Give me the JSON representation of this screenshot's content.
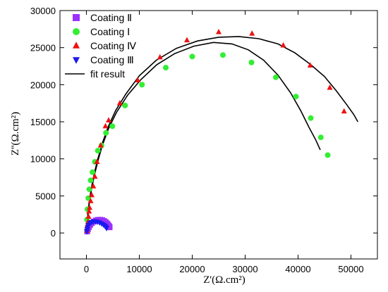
{
  "chart_data": {
    "type": "scatter",
    "xlabel": "Z'(Ω.cm²)",
    "ylabel": "Z''(Ω.cm²)",
    "xlim": [
      -5000,
      55000
    ],
    "ylim": [
      -3500,
      30000
    ],
    "xticks": [
      0,
      10000,
      20000,
      30000,
      40000,
      50000
    ],
    "yticks": [
      0,
      5000,
      10000,
      15000,
      20000,
      25000,
      30000
    ],
    "xtick_labels": [
      "0",
      "10000",
      "20000",
      "30000",
      "40000",
      "50000"
    ],
    "ytick_labels": [
      "0",
      "5000",
      "10000",
      "15000",
      "20000",
      "25000",
      "30000"
    ],
    "grid": false,
    "legend_position": "top-left",
    "legend_entries": [
      "Coating Ⅱ",
      "Coating Ⅰ",
      "Coating Ⅳ",
      "Coating Ⅲ",
      "fit result"
    ],
    "series": [
      {
        "name": "Coating Ⅱ",
        "marker": "square",
        "color": "#9b30ff",
        "x": [
          150,
          300,
          500,
          750,
          1050,
          1400,
          1800,
          2200,
          2600,
          3000,
          3350,
          3650,
          3900,
          4100,
          4250,
          4350,
          4400
        ],
        "y": [
          200,
          500,
          800,
          1100,
          1350,
          1550,
          1700,
          1780,
          1790,
          1740,
          1620,
          1480,
          1300,
          1120,
          960,
          840,
          760
        ]
      },
      {
        "name": "Coating Ⅰ",
        "marker": "circle",
        "color": "#33ee33",
        "x": [
          100,
          200,
          350,
          550,
          800,
          1150,
          1600,
          2150,
          2850,
          3700,
          4900,
          7300,
          10500,
          15000,
          20000,
          25800,
          31200,
          35800,
          39600,
          42400,
          44300,
          45600
        ],
        "y": [
          1800,
          3200,
          4700,
          5900,
          7100,
          8200,
          9600,
          11100,
          11800,
          13500,
          14400,
          17200,
          20000,
          22300,
          23800,
          24000,
          23000,
          21000,
          18400,
          15500,
          12900,
          10500
        ]
      },
      {
        "name": "Coating Ⅳ",
        "marker": "triangle-up",
        "color": "#ee1111",
        "x": [
          100,
          150,
          200,
          300,
          400,
          500,
          600,
          800,
          1000,
          1300,
          1600,
          2000,
          2700,
          3600,
          4200,
          6300,
          9700,
          13900,
          19000,
          25000,
          31300,
          37200,
          42300,
          46000,
          48700
        ],
        "y": [
          300,
          600,
          1100,
          1500,
          2200,
          2900,
          3400,
          4300,
          5100,
          6300,
          7600,
          9600,
          11800,
          14400,
          15200,
          17500,
          20600,
          23700,
          26000,
          27100,
          26900,
          25300,
          22600,
          19600,
          16400
        ]
      },
      {
        "name": "Coating Ⅲ",
        "marker": "triangle-down",
        "color": "#1a1aee",
        "x": [
          80,
          150,
          250,
          400,
          650,
          950,
          1300,
          1700,
          2100,
          2500,
          2900,
          3250,
          3500,
          3700,
          3800
        ],
        "y": [
          200,
          500,
          800,
          1050,
          1300,
          1450,
          1550,
          1550,
          1500,
          1400,
          1250,
          1100,
          950,
          800,
          650
        ]
      }
    ],
    "fit_lines": [
      {
        "name": "fit result",
        "x": [
          0,
          100,
          300,
          600,
          1000,
          1500,
          2200,
          3000,
          4200,
          5700,
          7800,
          10300,
          13300,
          16700,
          20300,
          24000,
          27500,
          30600,
          33500,
          36200,
          38600,
          40500,
          42100,
          43300,
          44200
        ],
        "y": [
          0,
          1200,
          2700,
          4300,
          6000,
          7800,
          9800,
          11800,
          14100,
          16300,
          18600,
          20700,
          22700,
          24200,
          25200,
          25700,
          25500,
          24700,
          23300,
          21300,
          18900,
          16500,
          14200,
          12600,
          11200
        ]
      },
      {
        "name": "fit result",
        "x": [
          0,
          100,
          300,
          600,
          1000,
          1500,
          2200,
          3000,
          4100,
          5500,
          7500,
          10000,
          13200,
          17000,
          21000,
          25000,
          28800,
          32600,
          36200,
          39400,
          42400,
          45000,
          47200,
          49200,
          50500,
          51300
        ],
        "y": [
          0,
          1300,
          2900,
          4600,
          6300,
          8100,
          10100,
          12100,
          14300,
          16500,
          18800,
          21200,
          23300,
          24900,
          25900,
          26400,
          26500,
          26200,
          25500,
          24300,
          22700,
          21100,
          19200,
          17300,
          16000,
          15000
        ]
      },
      {
        "name": "fit result",
        "x": [
          0,
          50,
          150,
          300,
          550,
          900,
          1350,
          1850,
          2350,
          2850,
          3300,
          3700,
          3950,
          4100
        ],
        "y": [
          0,
          400,
          800,
          1150,
          1450,
          1650,
          1760,
          1760,
          1680,
          1540,
          1350,
          1140,
          960,
          820
        ]
      },
      {
        "name": "fit result",
        "x": [
          0,
          40,
          120,
          260,
          480,
          800,
          1180,
          1600,
          2000,
          2400,
          2800,
          3150,
          3450,
          3650
        ],
        "y": [
          0,
          350,
          700,
          1000,
          1280,
          1460,
          1540,
          1540,
          1480,
          1370,
          1220,
          1070,
          900,
          760
        ]
      }
    ]
  }
}
